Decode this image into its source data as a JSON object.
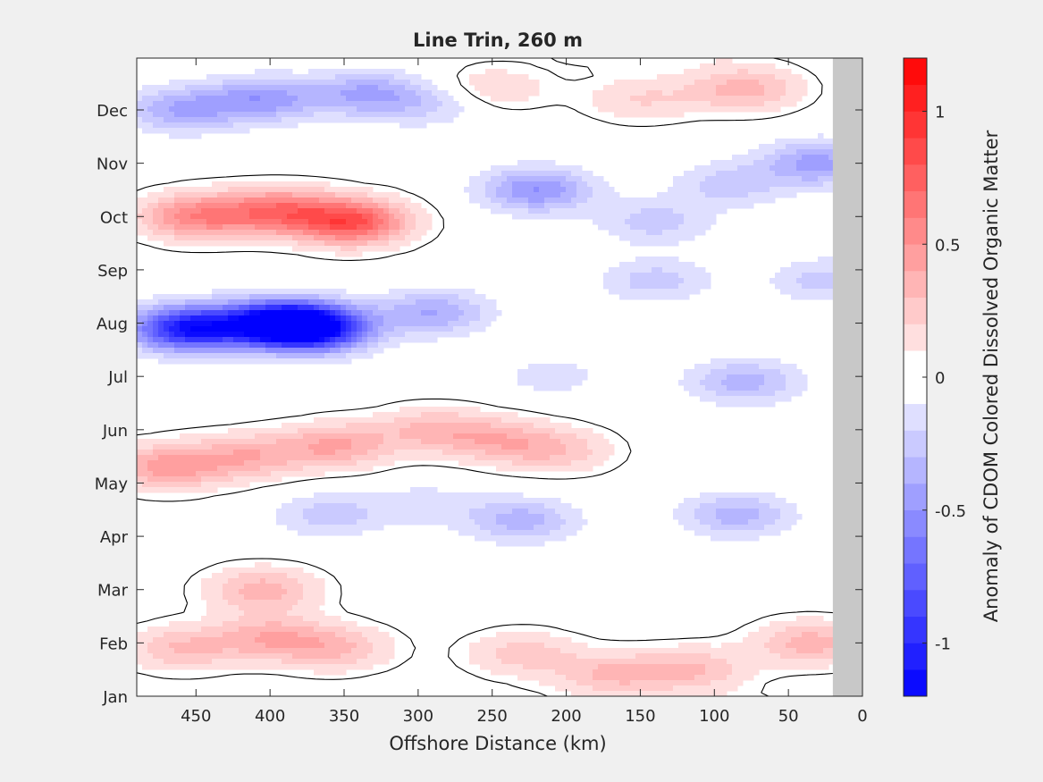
{
  "chart_data": {
    "type": "heatmap",
    "title": "Line Trin, 260 m",
    "xlabel": "Offshore Distance (km)",
    "ylabel": "",
    "xlim": [
      490,
      0
    ],
    "x_reversed": true,
    "x_ticks": [
      450,
      400,
      350,
      300,
      250,
      200,
      150,
      100,
      50,
      0
    ],
    "y_ticks": [
      "Jan",
      "Feb",
      "Mar",
      "Apr",
      "May",
      "Jun",
      "Jul",
      "Aug",
      "Sep",
      "Oct",
      "Nov",
      "Dec"
    ],
    "no_data_from_km": 20,
    "colorbar": {
      "label": "Anomaly of CDOM Colored Dissolved Organic Matter",
      "range": [
        -1.2,
        1.2
      ],
      "step": 0.1,
      "ticks": [
        -1,
        -0.5,
        0,
        0.5,
        1
      ],
      "tick_labels": [
        "-1",
        "-0.5",
        "0",
        "0.5",
        "1"
      ],
      "min_color": "#0000ff",
      "zero_color": "#ffffff",
      "max_color": "#ff0000"
    },
    "features": [
      {
        "x": 460,
        "month": 0.9,
        "value": 0.3
      },
      {
        "x": 400,
        "month": 1.1,
        "value": 0.35
      },
      {
        "x": 355,
        "month": 0.9,
        "value": 0.3
      },
      {
        "x": 230,
        "month": 0.8,
        "value": 0.25
      },
      {
        "x": 170,
        "month": 0.4,
        "value": 0.3
      },
      {
        "x": 115,
        "month": 0.5,
        "value": 0.3
      },
      {
        "x": 35,
        "month": 1.0,
        "value": 0.35
      },
      {
        "x": 405,
        "month": 2.0,
        "value": 0.35
      },
      {
        "x": 360,
        "month": 3.4,
        "value": -0.25
      },
      {
        "x": 295,
        "month": 3.6,
        "value": -0.15
      },
      {
        "x": 230,
        "month": 3.3,
        "value": -0.35
      },
      {
        "x": 85,
        "month": 3.4,
        "value": -0.35
      },
      {
        "x": 470,
        "month": 4.3,
        "value": 0.45
      },
      {
        "x": 415,
        "month": 4.5,
        "value": 0.35
      },
      {
        "x": 355,
        "month": 4.7,
        "value": 0.4
      },
      {
        "x": 290,
        "month": 5.0,
        "value": 0.3
      },
      {
        "x": 245,
        "month": 4.8,
        "value": 0.3
      },
      {
        "x": 205,
        "month": 4.6,
        "value": 0.25
      },
      {
        "x": 455,
        "month": 6.9,
        "value": -1.1
      },
      {
        "x": 395,
        "month": 7.0,
        "value": -1.1
      },
      {
        "x": 370,
        "month": 6.9,
        "value": -1.05
      },
      {
        "x": 290,
        "month": 7.2,
        "value": -0.4
      },
      {
        "x": 210,
        "month": 6.0,
        "value": -0.15
      },
      {
        "x": 140,
        "month": 7.8,
        "value": -0.25
      },
      {
        "x": 80,
        "month": 5.9,
        "value": -0.35
      },
      {
        "x": 25,
        "month": 7.8,
        "value": -0.25
      },
      {
        "x": 450,
        "month": 9.0,
        "value": 0.55
      },
      {
        "x": 395,
        "month": 9.1,
        "value": 0.6
      },
      {
        "x": 345,
        "month": 8.9,
        "value": 0.8
      },
      {
        "x": 220,
        "month": 9.5,
        "value": -0.5
      },
      {
        "x": 140,
        "month": 8.9,
        "value": -0.25
      },
      {
        "x": 90,
        "month": 9.6,
        "value": -0.25
      },
      {
        "x": 30,
        "month": 10.0,
        "value": -0.45
      },
      {
        "x": 460,
        "month": 11.0,
        "value": -0.4
      },
      {
        "x": 405,
        "month": 11.2,
        "value": -0.45
      },
      {
        "x": 335,
        "month": 11.3,
        "value": -0.4
      },
      {
        "x": 290,
        "month": 11.1,
        "value": -0.2
      },
      {
        "x": 250,
        "month": 11.4,
        "value": 0.2
      },
      {
        "x": 150,
        "month": 11.2,
        "value": 0.2
      },
      {
        "x": 80,
        "month": 11.4,
        "value": 0.35
      }
    ]
  }
}
